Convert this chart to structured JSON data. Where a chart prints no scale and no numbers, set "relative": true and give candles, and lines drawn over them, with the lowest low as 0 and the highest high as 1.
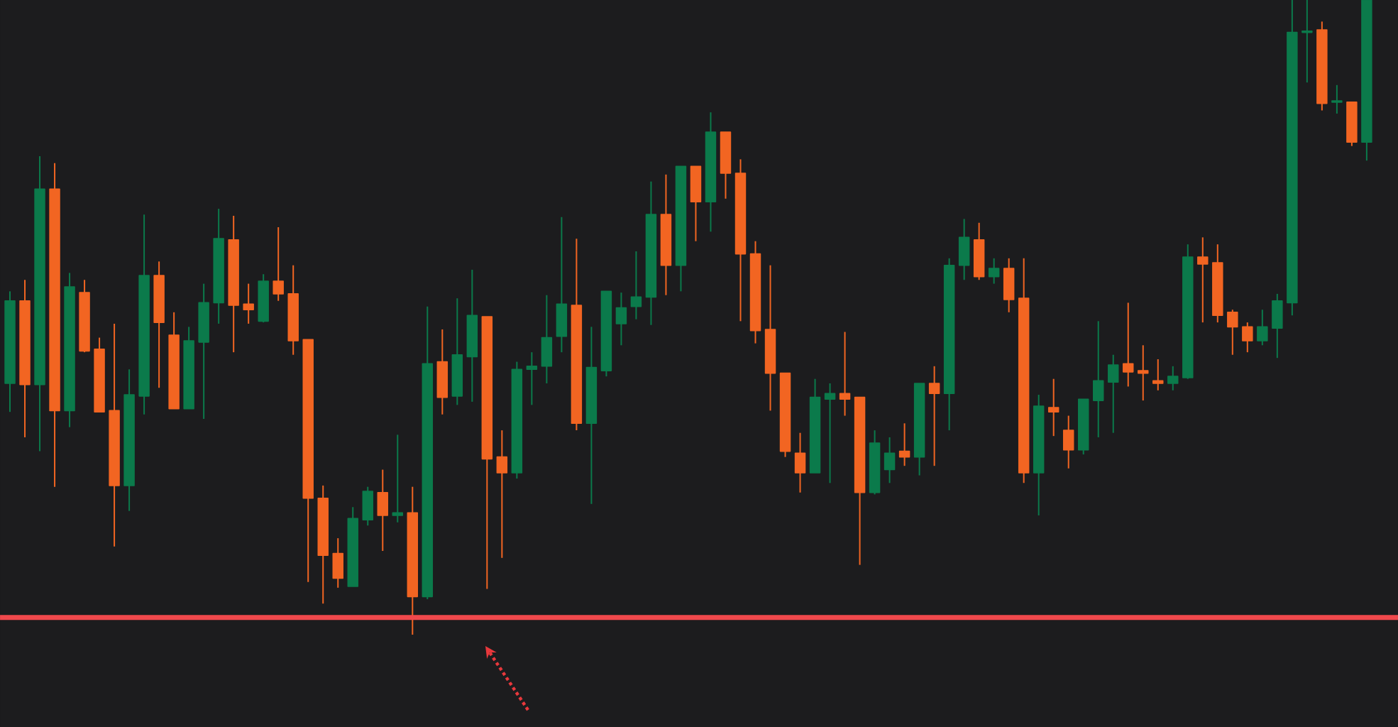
{
  "chart_data": {
    "type": "candlestick",
    "relative": true,
    "categories": [
      null,
      null,
      null,
      null,
      null,
      null,
      null,
      null,
      null,
      null,
      null,
      null,
      null,
      null,
      null,
      null,
      null,
      null,
      null,
      null,
      null,
      null,
      null,
      null,
      null,
      null,
      null,
      null,
      null,
      null,
      null,
      null,
      null,
      null,
      null,
      null,
      null,
      null,
      null,
      null,
      null,
      null,
      null,
      null,
      null,
      null,
      null,
      null,
      null,
      null,
      null,
      null,
      null,
      null,
      null,
      null,
      null,
      null,
      null,
      null,
      null,
      null,
      null,
      null,
      null,
      null,
      null,
      null,
      null,
      null,
      null,
      null,
      null,
      null,
      null,
      null,
      null,
      null,
      null,
      null,
      null,
      null,
      null,
      null,
      null,
      null,
      null,
      null,
      null,
      null,
      null,
      null
    ],
    "ohlc": [
      [
        0.396,
        0.541,
        0.351,
        0.526
      ],
      [
        0.526,
        0.559,
        0.311,
        0.394
      ],
      [
        0.394,
        0.754,
        0.289,
        0.702
      ],
      [
        0.702,
        0.743,
        0.233,
        0.353
      ],
      [
        0.353,
        0.57,
        0.327,
        0.548
      ],
      [
        0.539,
        0.559,
        0.445,
        0.447
      ],
      [
        0.45,
        0.468,
        0.351,
        0.351
      ],
      [
        0.353,
        0.49,
        0.139,
        0.235
      ],
      [
        0.235,
        0.418,
        0.195,
        0.378
      ],
      [
        0.376,
        0.662,
        0.347,
        0.566
      ],
      [
        0.566,
        0.588,
        0.389,
        0.492
      ],
      [
        0.472,
        0.508,
        0.356,
        0.356
      ],
      [
        0.356,
        0.485,
        0.356,
        0.463
      ],
      [
        0.461,
        0.553,
        0.34,
        0.523
      ],
      [
        0.523,
        0.671,
        0.49,
        0.624
      ],
      [
        0.622,
        0.66,
        0.445,
        0.519
      ],
      [
        0.521,
        0.553,
        0.49,
        0.512
      ],
      [
        0.494,
        0.568,
        0.492,
        0.557
      ],
      [
        0.557,
        0.642,
        0.526,
        0.537
      ],
      [
        0.537,
        0.582,
        0.441,
        0.463
      ],
      [
        0.465,
        0.465,
        0.083,
        0.215
      ],
      [
        0.215,
        0.235,
        0.049,
        0.125
      ],
      [
        0.128,
        0.152,
        0.074,
        0.089
      ],
      [
        0.076,
        0.201,
        0.076,
        0.183
      ],
      [
        0.181,
        0.233,
        0.172,
        0.226
      ],
      [
        0.224,
        0.26,
        0.132,
        0.188
      ],
      [
        0.188,
        0.315,
        0.177,
        0.192
      ],
      [
        0.192,
        0.233,
        0.0,
        0.06
      ],
      [
        0.06,
        0.517,
        0.056,
        0.427
      ],
      [
        0.43,
        0.481,
        0.347,
        0.374
      ],
      [
        0.376,
        0.53,
        0.362,
        0.441
      ],
      [
        0.438,
        0.575,
        0.367,
        0.503
      ],
      [
        0.501,
        0.501,
        0.072,
        0.277
      ],
      [
        0.28,
        0.322,
        0.121,
        0.255
      ],
      [
        0.255,
        0.43,
        0.246,
        0.418
      ],
      [
        0.418,
        0.445,
        0.362,
        0.423
      ],
      [
        0.423,
        0.535,
        0.396,
        0.468
      ],
      [
        0.47,
        0.658,
        0.445,
        0.521
      ],
      [
        0.519,
        0.624,
        0.322,
        0.333
      ],
      [
        0.333,
        0.485,
        0.206,
        0.421
      ],
      [
        0.416,
        0.541,
        0.407,
        0.541
      ],
      [
        0.49,
        0.539,
        0.456,
        0.515
      ],
      [
        0.517,
        0.604,
        0.497,
        0.532
      ],
      [
        0.532,
        0.714,
        0.488,
        0.662
      ],
      [
        0.662,
        0.725,
        0.535,
        0.582
      ],
      [
        0.582,
        0.738,
        0.541,
        0.738
      ],
      [
        0.738,
        0.738,
        0.62,
        0.682
      ],
      [
        0.682,
        0.823,
        0.635,
        0.792
      ],
      [
        0.792,
        0.792,
        0.687,
        0.727
      ],
      [
        0.727,
        0.749,
        0.494,
        0.6
      ],
      [
        0.6,
        0.62,
        0.459,
        0.479
      ],
      [
        0.481,
        0.582,
        0.353,
        0.412
      ],
      [
        0.412,
        0.412,
        0.28,
        0.289
      ],
      [
        0.286,
        0.318,
        0.224,
        0.255
      ],
      [
        0.255,
        0.403,
        0.255,
        0.374
      ],
      [
        0.371,
        0.396,
        0.239,
        0.38
      ],
      [
        0.38,
        0.477,
        0.345,
        0.371
      ],
      [
        0.374,
        0.374,
        0.11,
        0.224
      ],
      [
        0.224,
        0.322,
        0.221,
        0.302
      ],
      [
        0.26,
        0.311,
        0.239,
        0.286
      ],
      [
        0.289,
        0.333,
        0.266,
        0.28
      ],
      [
        0.28,
        0.396,
        0.251,
        0.396
      ],
      [
        0.396,
        0.423,
        0.266,
        0.38
      ],
      [
        0.38,
        0.593,
        0.322,
        0.582
      ],
      [
        0.582,
        0.655,
        0.559,
        0.626
      ],
      [
        0.622,
        0.649,
        0.559,
        0.564
      ],
      [
        0.564,
        0.593,
        0.553,
        0.577
      ],
      [
        0.577,
        0.593,
        0.508,
        0.528
      ],
      [
        0.53,
        0.593,
        0.239,
        0.255
      ],
      [
        0.255,
        0.378,
        0.188,
        0.36
      ],
      [
        0.358,
        0.403,
        0.313,
        0.351
      ],
      [
        0.322,
        0.345,
        0.262,
        0.291
      ],
      [
        0.291,
        0.371,
        0.284,
        0.371
      ],
      [
        0.369,
        0.494,
        0.311,
        0.4
      ],
      [
        0.398,
        0.441,
        0.318,
        0.425
      ],
      [
        0.427,
        0.523,
        0.391,
        0.414
      ],
      [
        0.416,
        0.456,
        0.369,
        0.412
      ],
      [
        0.4,
        0.434,
        0.385,
        0.396
      ],
      [
        0.396,
        0.423,
        0.385,
        0.407
      ],
      [
        0.405,
        0.615,
        0.403,
        0.595
      ],
      [
        0.595,
        0.626,
        0.492,
        0.584
      ],
      [
        0.586,
        0.615,
        0.492,
        0.503
      ],
      [
        0.508,
        0.512,
        0.441,
        0.485
      ],
      [
        0.485,
        0.492,
        0.445,
        0.463
      ],
      [
        0.463,
        0.512,
        0.456,
        0.485
      ],
      [
        0.483,
        0.537,
        0.436,
        0.526
      ],
      [
        0.523,
        1.0,
        0.503,
        0.949
      ],
      [
        0.949,
        1.0,
        0.87,
        0.951
      ],
      [
        0.953,
        0.966,
        0.826,
        0.837
      ],
      [
        0.839,
        0.866,
        0.821,
        0.841
      ],
      [
        0.839,
        0.839,
        0.77,
        0.776
      ],
      [
        0.776,
        1.0,
        0.747,
        1.0
      ]
    ],
    "colors": [
      "#0b7a4b",
      "#f26522",
      "#0b7a4b",
      "#f26522",
      "#0b7a4b",
      "#f26522",
      "#f26522",
      "#f26522",
      "#0b7a4b",
      "#0b7a4b",
      "#f26522",
      "#f26522",
      "#0b7a4b",
      "#0b7a4b",
      "#0b7a4b",
      "#f26522",
      "#f26522",
      "#0b7a4b",
      "#f26522",
      "#f26522",
      "#f26522",
      "#f26522",
      "#f26522",
      "#0b7a4b",
      "#0b7a4b",
      "#f26522",
      "#0b7a4b",
      "#f26522",
      "#0b7a4b",
      "#f26522",
      "#0b7a4b",
      "#0b7a4b",
      "#f26522",
      "#f26522",
      "#0b7a4b",
      "#0b7a4b",
      "#0b7a4b",
      "#0b7a4b",
      "#f26522",
      "#0b7a4b",
      "#0b7a4b",
      "#0b7a4b",
      "#0b7a4b",
      "#0b7a4b",
      "#f26522",
      "#0b7a4b",
      "#f26522",
      "#0b7a4b",
      "#f26522",
      "#f26522",
      "#f26522",
      "#f26522",
      "#f26522",
      "#f26522",
      "#0b7a4b",
      "#0b7a4b",
      "#f26522",
      "#f26522",
      "#0b7a4b",
      "#0b7a4b",
      "#f26522",
      "#0b7a4b",
      "#f26522",
      "#0b7a4b",
      "#0b7a4b",
      "#f26522",
      "#0b7a4b",
      "#f26522",
      "#f26522",
      "#0b7a4b",
      "#f26522",
      "#f26522",
      "#0b7a4b",
      "#0b7a4b",
      "#0b7a4b",
      "#f26522",
      "#f26522",
      "#f26522",
      "#0b7a4b",
      "#0b7a4b",
      "#f26522",
      "#f26522",
      "#f26522",
      "#f26522",
      "#0b7a4b",
      "#0b7a4b",
      "#0b7a4b",
      "#0b7a4b",
      "#f26522",
      "#0b7a4b",
      "#f26522",
      "#0b7a4b"
    ],
    "ref_lines": [
      {
        "axis": "y",
        "value": 0.027,
        "color": "#f0484c",
        "line_style": "solid"
      }
    ]
  }
}
